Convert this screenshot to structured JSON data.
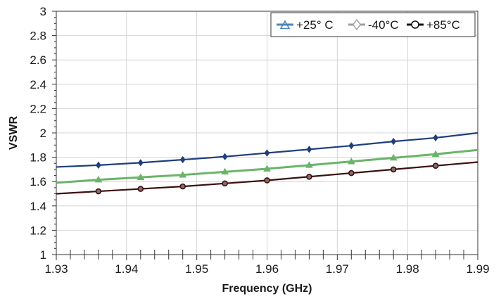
{
  "chart_data": {
    "type": "line",
    "title": "",
    "xlabel": "Frequency (GHz)",
    "ylabel": "VSWR",
    "xlim": [
      1.93,
      1.99
    ],
    "ylim": [
      1,
      3
    ],
    "x_ticks": [
      "1.93",
      "1.94",
      "1.95",
      "1.96",
      "1.97",
      "1.98",
      "1.99"
    ],
    "y_ticks": [
      "1",
      "1.2",
      "1.4",
      "1.6",
      "1.8",
      "2",
      "2.2",
      "2.4",
      "2.6",
      "2.8",
      "3"
    ],
    "grid": true,
    "legend_position": "top-right",
    "series": [
      {
        "name": "+25° C",
        "color": "#6ab46a",
        "marker": "triangle",
        "x": [
          1.93,
          1.936,
          1.942,
          1.948,
          1.954,
          1.96,
          1.966,
          1.972,
          1.978,
          1.984,
          1.99
        ],
        "y": [
          1.59,
          1.615,
          1.635,
          1.655,
          1.68,
          1.705,
          1.735,
          1.765,
          1.795,
          1.825,
          1.86
        ]
      },
      {
        "name": "-40°C",
        "color": "#1f3f7a",
        "marker": "diamond",
        "x": [
          1.93,
          1.936,
          1.942,
          1.948,
          1.954,
          1.96,
          1.966,
          1.972,
          1.978,
          1.984,
          1.99
        ],
        "y": [
          1.72,
          1.735,
          1.755,
          1.78,
          1.805,
          1.835,
          1.865,
          1.895,
          1.93,
          1.96,
          2.0
        ]
      },
      {
        "name": "+85°C",
        "color": "#3a0f0f",
        "marker": "circle",
        "x": [
          1.93,
          1.936,
          1.942,
          1.948,
          1.954,
          1.96,
          1.966,
          1.972,
          1.978,
          1.984,
          1.99
        ],
        "y": [
          1.5,
          1.52,
          1.54,
          1.56,
          1.585,
          1.61,
          1.64,
          1.67,
          1.7,
          1.73,
          1.76
        ]
      }
    ],
    "legend_marker_colors": {
      "+25° C": "#4d86b8",
      "-40°C": "#9e9e9e",
      "+85°C": "#111111"
    }
  }
}
